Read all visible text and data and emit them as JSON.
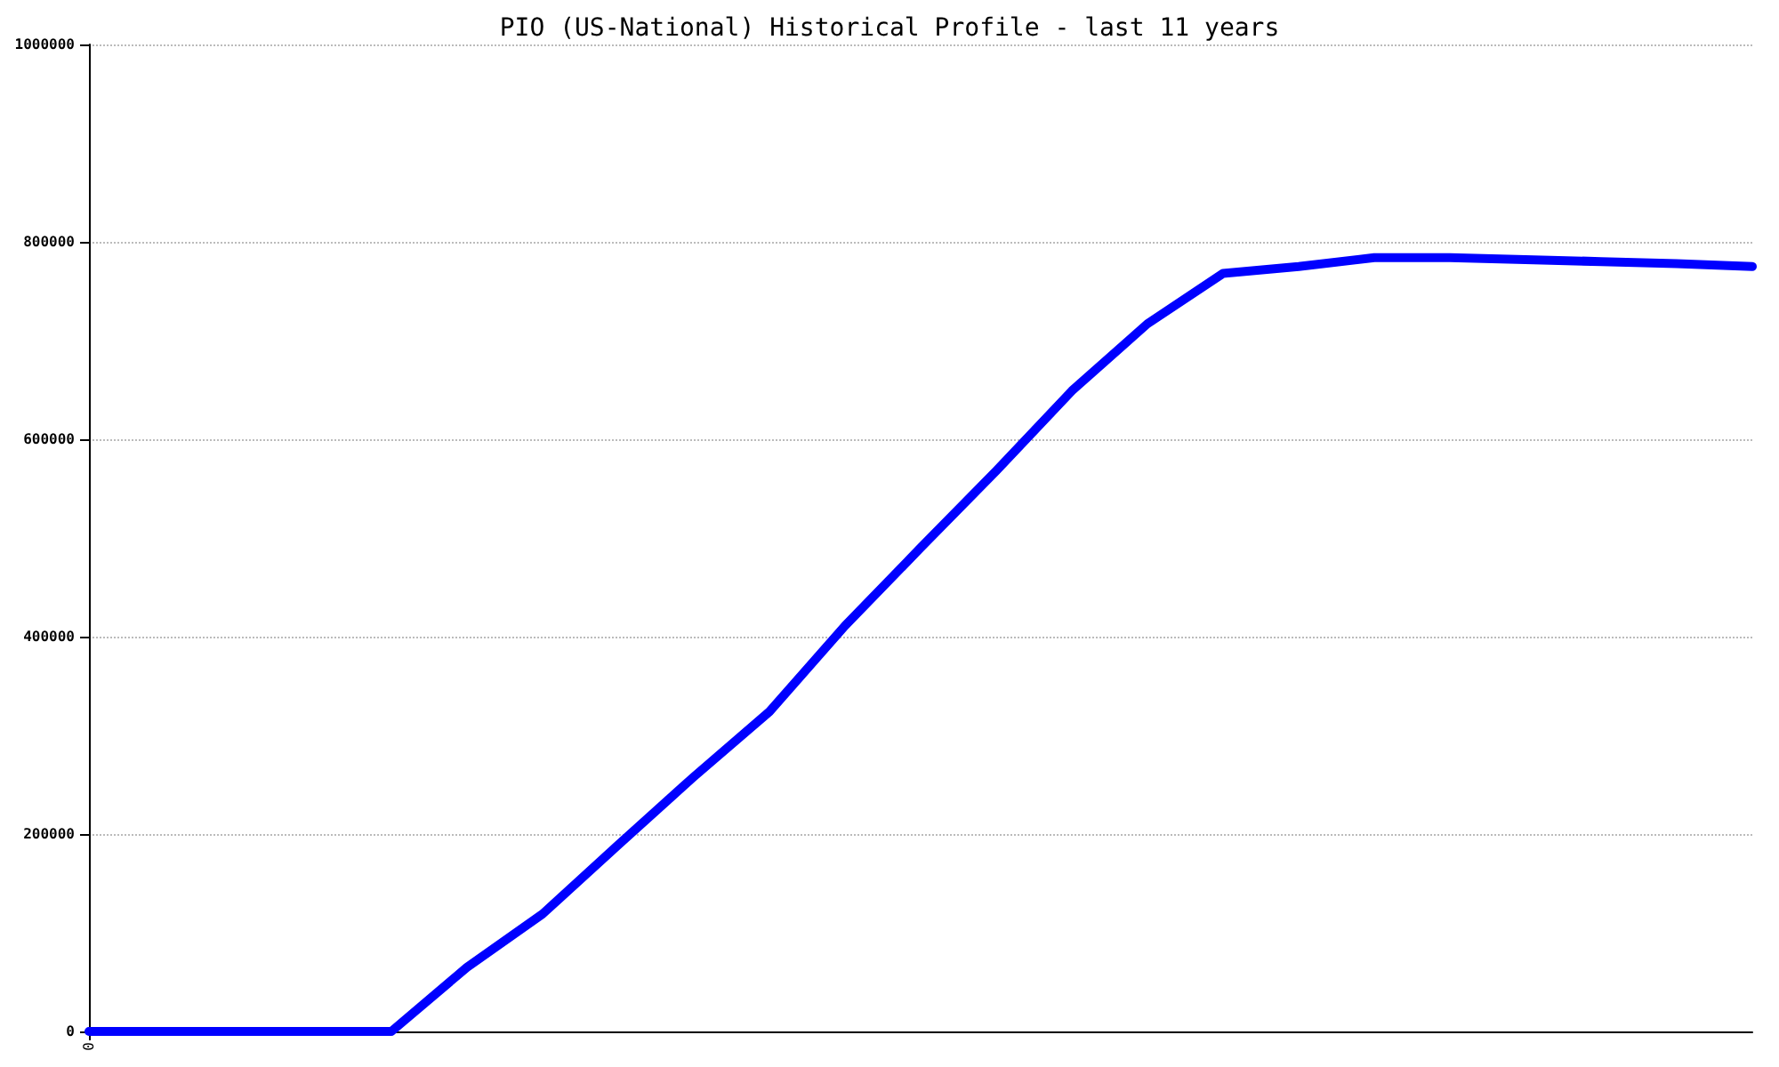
{
  "chart_data": {
    "type": "line",
    "title": "PIO (US-National) Historical Profile - last 11 years",
    "categories": [
      "0",
      null,
      null,
      null,
      null,
      null,
      null,
      null,
      null,
      null,
      null,
      null,
      null,
      null,
      null,
      null,
      null,
      null,
      null,
      null,
      null,
      null,
      null
    ],
    "series": [
      {
        "color": "#0000ff",
        "values": [
          0,
          0,
          0,
          0,
          0,
          65000,
          119000,
          189000,
          258000,
          324000,
          411000,
          490000,
          568000,
          649000,
          717000,
          768000,
          775000,
          784000,
          784000,
          782000,
          780000,
          778000,
          775000
        ]
      }
    ],
    "ylim": [
      0,
      1000000
    ],
    "yticks": [
      0,
      200000,
      400000,
      600000,
      800000,
      1000000
    ],
    "grid": "y",
    "marker": "none",
    "line_style": "solid"
  }
}
